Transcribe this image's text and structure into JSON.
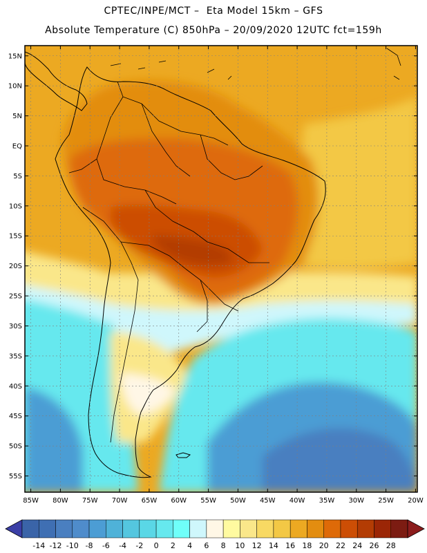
{
  "header": {
    "line1": "CPTEC/INPE/MCT –  Eta Model 15km – GFS",
    "line2": "Absolute Temperature (C) 850hPa – 20/09/2020 12UTC fct=159h"
  },
  "map": {
    "lon_range": [
      -86,
      -19.7
    ],
    "lat_range": [
      -57.7,
      16.7
    ],
    "lat_ticks": [
      {
        "value": 15,
        "label": "15N"
      },
      {
        "value": 10,
        "label": "10N"
      },
      {
        "value": 5,
        "label": "5N"
      },
      {
        "value": 0,
        "label": "EQ"
      },
      {
        "value": -5,
        "label": "5S"
      },
      {
        "value": -10,
        "label": "10S"
      },
      {
        "value": -15,
        "label": "15S"
      },
      {
        "value": -20,
        "label": "20S"
      },
      {
        "value": -25,
        "label": "25S"
      },
      {
        "value": -30,
        "label": "30S"
      },
      {
        "value": -35,
        "label": "35S"
      },
      {
        "value": -40,
        "label": "40S"
      },
      {
        "value": -45,
        "label": "45S"
      },
      {
        "value": -50,
        "label": "50S"
      },
      {
        "value": -55,
        "label": "55S"
      }
    ],
    "lon_ticks": [
      {
        "value": -85,
        "label": "85W"
      },
      {
        "value": -80,
        "label": "80W"
      },
      {
        "value": -75,
        "label": "75W"
      },
      {
        "value": -70,
        "label": "70W"
      },
      {
        "value": -65,
        "label": "65W"
      },
      {
        "value": -60,
        "label": "60W"
      },
      {
        "value": -55,
        "label": "55W"
      },
      {
        "value": -50,
        "label": "50W"
      },
      {
        "value": -45,
        "label": "45W"
      },
      {
        "value": -40,
        "label": "40W"
      },
      {
        "value": -35,
        "label": "35W"
      },
      {
        "value": -30,
        "label": "30W"
      },
      {
        "value": -25,
        "label": "25W"
      },
      {
        "value": -20,
        "label": "20W"
      }
    ]
  },
  "colorbar": {
    "labels": [
      "-14",
      "-12",
      "-10",
      "-8",
      "-6",
      "-4",
      "-2",
      "0",
      "2",
      "4",
      "6",
      "8",
      "10",
      "12",
      "14",
      "16",
      "18",
      "20",
      "22",
      "24",
      "26",
      "28"
    ],
    "colors": [
      "#3a64a8",
      "#3f6fb3",
      "#4a7fc0",
      "#4f8ccb",
      "#4c9dd4",
      "#4fb2d8",
      "#54c6df",
      "#5ad7e6",
      "#66e8ee",
      "#6ffff9",
      "#cff7fc",
      "#fff7e6",
      "#fffaa0",
      "#fae78a",
      "#f8d963",
      "#f3c845",
      "#eca922",
      "#e38d10",
      "#de6a08",
      "#cc4e05",
      "#b33c04",
      "#9b2606",
      "#7c1c12"
    ],
    "under_color": "#3b3fa6",
    "over_color": "#8b1c1c"
  },
  "field": {
    "zones": [
      {
        "name": "atlantic-north",
        "color": "#eca922"
      },
      {
        "name": "atlantic-subtropic",
        "color": "#f3c845"
      },
      {
        "name": "atlantic-mid",
        "color": "#fae78a"
      },
      {
        "name": "southern-cold",
        "color": "#66e8ee"
      },
      {
        "name": "southern-deep",
        "color": "#4c9dd4"
      },
      {
        "name": "continent-warm",
        "color": "#e38d10"
      },
      {
        "name": "continent-hot",
        "color": "#de6a08"
      },
      {
        "name": "continent-hottest",
        "color": "#cc4e05"
      }
    ]
  }
}
